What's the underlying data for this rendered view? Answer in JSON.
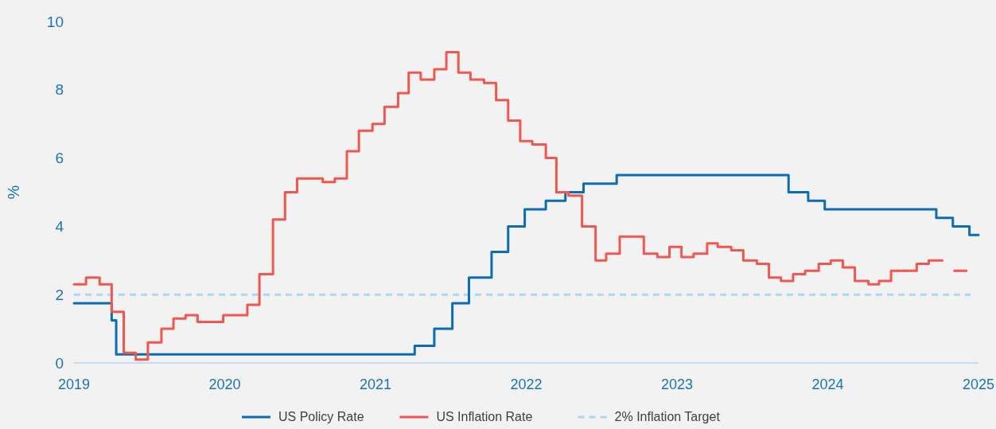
{
  "chart_data": {
    "type": "step",
    "ylabel": "%",
    "xlim": [
      2019,
      2025
    ],
    "xticks": [
      2019,
      2020,
      2021,
      2022,
      2023,
      2024,
      2025
    ],
    "ylim": [
      0,
      10
    ],
    "yticks": [
      0,
      2,
      4,
      6,
      8,
      10
    ],
    "grid": false,
    "legend": "bottom",
    "marker": "none",
    "line_style": "solid",
    "series": [
      {
        "name": "US Policy Rate",
        "color": "#0b6db3",
        "x": [
          2019,
          2019.25,
          2019.28,
          2021.26,
          2021.39,
          2021.51,
          2021.62,
          2021.77,
          2021.88,
          2021.99,
          2022.13,
          2022.26,
          2022.38,
          2022.6,
          2023.74,
          2023.87,
          2023.98,
          2024.72,
          2024.83,
          2024.94,
          2025
        ],
        "values": [
          1.75,
          1.25,
          0.25,
          0.5,
          1,
          1.75,
          2.5,
          3.25,
          4,
          4.5,
          4.75,
          5,
          5.25,
          5.5,
          5,
          4.75,
          4.5,
          4.25,
          4,
          3.75,
          3.75
        ]
      },
      {
        "name": "US Inflation Rate",
        "color": "#f0574f",
        "x": [
          2019,
          2019.08,
          2019.17,
          2019.25,
          2019.33,
          2019.41,
          2019.49,
          2019.58,
          2019.66,
          2019.74,
          2019.82,
          2019.99,
          2020.15,
          2020.23,
          2020.32,
          2020.4,
          2020.48,
          2020.65,
          2020.73,
          2020.81,
          2020.89,
          2020.98,
          2021.06,
          2021.15,
          2021.22,
          2021.3,
          2021.39,
          2021.47,
          2021.55,
          2021.63,
          2021.72,
          2021.8,
          2021.88,
          2021.96,
          2022.04,
          2022.13,
          2022.2,
          2022.28,
          2022.37,
          2022.46,
          2022.53,
          2022.62,
          2022.78,
          2022.87,
          2022.95,
          2023.03,
          2023.11,
          2023.2,
          2023.27,
          2023.36,
          2023.44,
          2023.53,
          2023.61,
          2023.69,
          2023.77,
          2023.85,
          2023.94,
          2024.02,
          2024.1,
          2024.18,
          2024.27,
          2024.34,
          2024.42,
          2024.59,
          2024.67,
          2024.76,
          2024.84,
          2024.92
        ],
        "values": [
          2.3,
          2.5,
          2.3,
          1.5,
          0.3,
          0.1,
          0.6,
          1,
          1.3,
          1.4,
          1.2,
          1.4,
          1.7,
          2.6,
          4.2,
          5,
          5.4,
          5.3,
          5.4,
          6.2,
          6.8,
          7,
          7.5,
          7.9,
          8.5,
          8.3,
          8.6,
          9.1,
          8.5,
          8.3,
          8.2,
          7.7,
          7.1,
          6.5,
          6.4,
          6,
          5,
          4.9,
          4,
          3,
          3.2,
          3.7,
          3.2,
          3.1,
          3.4,
          3.1,
          3.2,
          3.5,
          3.4,
          3.3,
          3,
          2.9,
          2.5,
          2.4,
          2.6,
          2.7,
          2.9,
          3,
          2.8,
          2.4,
          2.3,
          2.4,
          2.7,
          2.9,
          3,
          null,
          2.7,
          2.7
        ]
      }
    ],
    "ref_lines": [
      {
        "axis": "y",
        "value": 2,
        "label": "2% Inflation Target",
        "color": "#a8d8f0",
        "line_style": "dashed"
      }
    ]
  }
}
